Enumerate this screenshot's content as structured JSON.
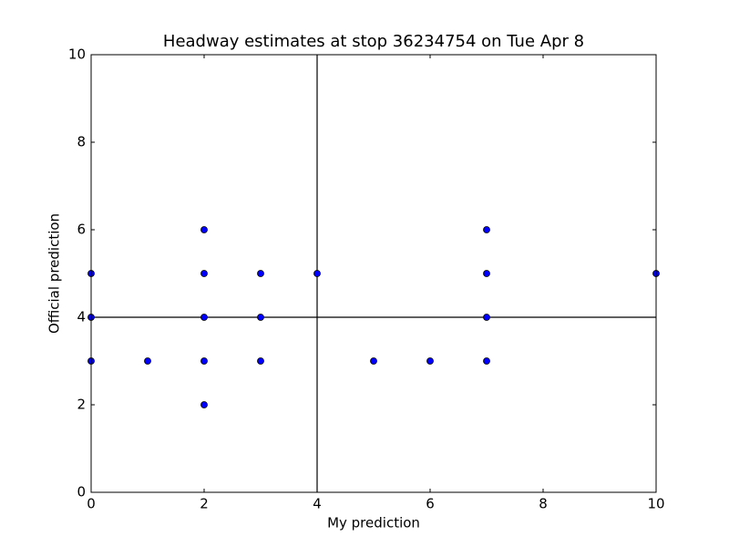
{
  "chart_data": {
    "type": "scatter",
    "title": "Headway estimates at stop 36234754 on Tue Apr 8",
    "x_label": "My prediction",
    "y_label": "Official prediction",
    "x": [
      0,
      0,
      0,
      1,
      2,
      2,
      2,
      2,
      2,
      3,
      3,
      3,
      4,
      5,
      6,
      7,
      7,
      7,
      7,
      10
    ],
    "values": [
      5,
      4,
      3,
      3,
      6,
      5,
      4,
      3,
      2,
      5,
      4,
      3,
      5,
      3,
      3,
      6,
      5,
      4,
      3,
      5
    ],
    "color": "#0000ff",
    "reference_lines": {
      "x": 4,
      "y": 4
    },
    "xlim": [
      0,
      10
    ],
    "xticks": [
      0,
      2,
      4,
      6,
      8,
      10
    ],
    "ylim": [
      0,
      10
    ],
    "yticks": [
      0,
      2,
      4,
      6,
      8,
      10
    ],
    "grid": false
  }
}
